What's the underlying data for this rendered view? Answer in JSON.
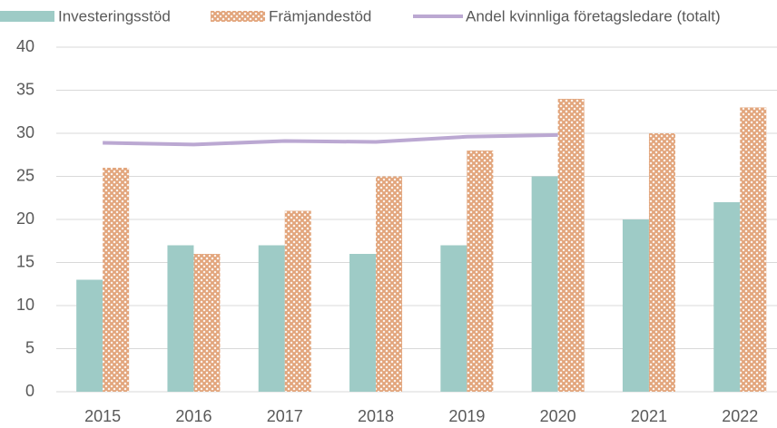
{
  "chart_data": {
    "type": "bar",
    "categories": [
      "2015",
      "2016",
      "2017",
      "2018",
      "2019",
      "2020",
      "2021",
      "2022"
    ],
    "series": [
      {
        "name": "Investeringsstöd",
        "color": "#9ecbc6",
        "values": [
          13,
          17,
          17,
          16,
          17,
          25,
          20,
          22
        ]
      },
      {
        "name": "Främjandestöd",
        "color": "#e2a57c",
        "pattern": "crosshatch",
        "values": [
          26,
          16,
          21,
          25,
          28,
          34,
          30,
          33
        ]
      },
      {
        "name": "Andel kvinnliga företagsledare (totalt)",
        "color": "#bba8d2",
        "type": "line",
        "values": [
          28.9,
          28.7,
          29.1,
          29.0,
          29.6,
          29.8,
          null,
          null
        ]
      }
    ],
    "ylim": [
      0,
      40
    ],
    "yticks": [
      0,
      5,
      10,
      15,
      20,
      25,
      30,
      35,
      40
    ],
    "grid": true,
    "legend": "top"
  }
}
